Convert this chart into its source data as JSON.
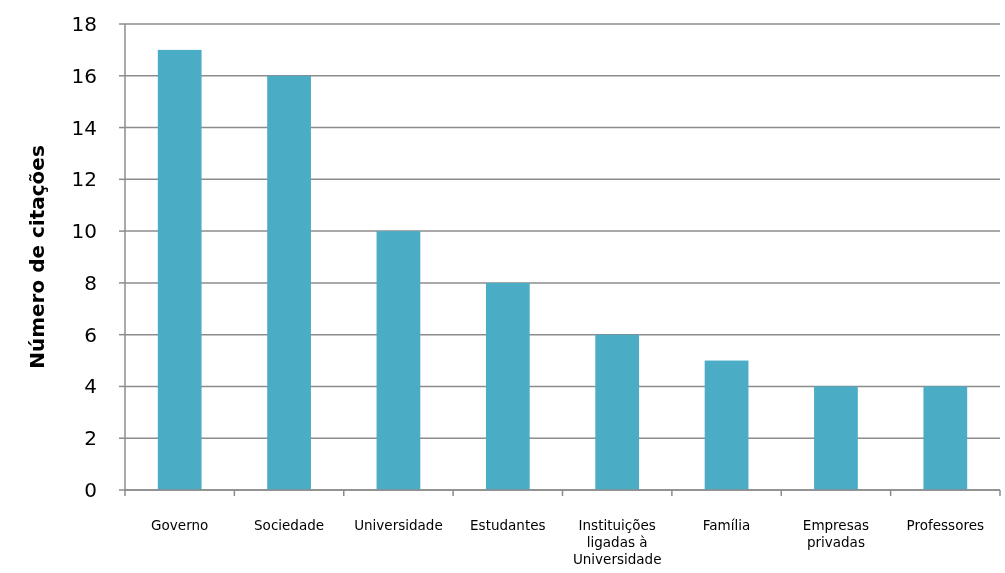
{
  "chart_data": {
    "type": "bar",
    "ylabel": "Número de citações",
    "categories": [
      "Governo",
      "Sociedade",
      "Universidade",
      "Estudantes",
      "Instituições ligadas à Universidade",
      "Família",
      "Empresas privadas",
      "Professores"
    ],
    "values": [
      17,
      16,
      10,
      8,
      6,
      5,
      4,
      4
    ],
    "color": "#4bacc6",
    "ylim": [
      0,
      18
    ],
    "yticks": [
      0,
      2,
      4,
      6,
      8,
      10,
      12,
      14,
      16,
      18
    ],
    "grid": "y"
  }
}
